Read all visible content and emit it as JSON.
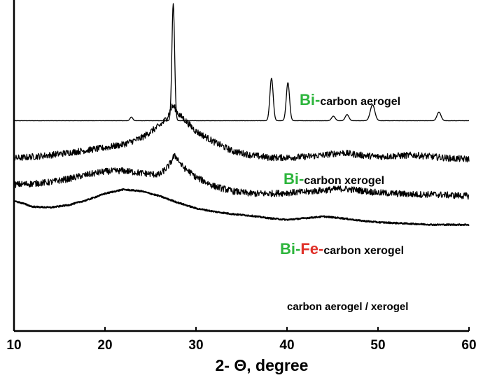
{
  "chart_data": {
    "type": "line",
    "xlabel": "2- Θ, degree",
    "ylabel": "",
    "xlim": [
      10,
      60
    ],
    "x_ticks": [
      "10",
      "20",
      "30",
      "40",
      "50",
      "60"
    ],
    "grid": false,
    "y_ticks_shown": false,
    "series": [
      {
        "name": "Bi-carbon aerogel",
        "label_parts": [
          {
            "text": "Bi",
            "color": "#2db53c"
          },
          {
            "text": "-",
            "color": "#2db53c"
          },
          {
            "text": "carbon aerogel",
            "color": "#000000"
          }
        ],
        "baseline": 0.6,
        "noise": 0.02,
        "peaks": [
          {
            "x": 22.9,
            "height": 0.9,
            "width": 0.15
          },
          {
            "x": 27.5,
            "height": 28.6,
            "width": 0.15
          },
          {
            "x": 38.3,
            "height": 10.4,
            "width": 0.18
          },
          {
            "x": 40.1,
            "height": 9.3,
            "width": 0.18
          },
          {
            "x": 45.1,
            "height": 1.1,
            "width": 0.2
          },
          {
            "x": 46.6,
            "height": 1.5,
            "width": 0.2
          },
          {
            "x": 49.4,
            "height": 3.9,
            "width": 0.25
          },
          {
            "x": 56.7,
            "height": 2.1,
            "width": 0.22
          }
        ]
      },
      {
        "name": "Bi-carbon xerogel",
        "label_parts": [
          {
            "text": "Bi",
            "color": "#2db53c"
          },
          {
            "text": "-",
            "color": "#2db53c"
          },
          {
            "text": "carbon xerogel",
            "color": "#000000"
          }
        ],
        "points": [
          [
            10,
            -8.6
          ],
          [
            12,
            -8.2
          ],
          [
            14,
            -7.8
          ],
          [
            16,
            -7.2
          ],
          [
            18,
            -6.6
          ],
          [
            20,
            -6.0
          ],
          [
            22,
            -5.2
          ],
          [
            24,
            -3.6
          ],
          [
            26,
            -0.6
          ],
          [
            27.4,
            2.4
          ],
          [
            28.5,
            1.4
          ],
          [
            30,
            -2.0
          ],
          [
            32,
            -4.6
          ],
          [
            34,
            -6.8
          ],
          [
            36,
            -7.8
          ],
          [
            38,
            -8.4
          ],
          [
            40,
            -8.4
          ],
          [
            42,
            -8.2
          ],
          [
            44,
            -7.8
          ],
          [
            46,
            -7.2
          ],
          [
            48,
            -7.8
          ],
          [
            50,
            -8.2
          ],
          [
            52,
            -8.0
          ],
          [
            54,
            -7.8
          ],
          [
            56,
            -8.2
          ],
          [
            58,
            -8.6
          ],
          [
            60,
            -8.8
          ]
        ],
        "noise": 0.8,
        "peaks": [
          {
            "x": 27.5,
            "height": 1.8,
            "width": 0.35
          }
        ]
      },
      {
        "name": "Bi-Fe-carbon xerogel",
        "label_parts": [
          {
            "text": "Bi",
            "color": "#2db53c"
          },
          {
            "text": "-",
            "color": "#2db53c"
          },
          {
            "text": "Fe",
            "color": "#e0312a"
          },
          {
            "text": "-",
            "color": "#e0312a"
          },
          {
            "text": "carbon xerogel",
            "color": "#000000"
          }
        ],
        "points": [
          [
            10,
            -15.0
          ],
          [
            12,
            -14.8
          ],
          [
            14,
            -14.4
          ],
          [
            16,
            -13.6
          ],
          [
            18,
            -12.6
          ],
          [
            20,
            -11.8
          ],
          [
            22,
            -11.6
          ],
          [
            24,
            -12.2
          ],
          [
            26,
            -12.6
          ],
          [
            27.5,
            -9.4
          ],
          [
            29,
            -11.4
          ],
          [
            30,
            -13.2
          ],
          [
            32,
            -15.4
          ],
          [
            34,
            -16.6
          ],
          [
            36,
            -17.2
          ],
          [
            38,
            -17.2
          ],
          [
            40,
            -17.0
          ],
          [
            42,
            -16.8
          ],
          [
            44,
            -16.4
          ],
          [
            46,
            -16.0
          ],
          [
            48,
            -16.4
          ],
          [
            50,
            -17.0
          ],
          [
            52,
            -17.2
          ],
          [
            54,
            -17.4
          ],
          [
            56,
            -17.4
          ],
          [
            58,
            -17.6
          ],
          [
            60,
            -17.8
          ]
        ],
        "noise": 0.8,
        "peaks": [
          {
            "x": 27.8,
            "height": 1.6,
            "width": 0.35
          }
        ]
      },
      {
        "name": "carbon aerogel/xerogel",
        "label_parts": [
          {
            "text": "carbon aerogel / xerogel",
            "color": "#000000"
          }
        ],
        "points": [
          [
            10,
            -19.0
          ],
          [
            11,
            -19.6
          ],
          [
            12,
            -20.4
          ],
          [
            14,
            -20.6
          ],
          [
            16,
            -20.0
          ],
          [
            18,
            -18.8
          ],
          [
            20,
            -17.2
          ],
          [
            22,
            -16.2
          ],
          [
            24,
            -16.6
          ],
          [
            26,
            -17.8
          ],
          [
            28,
            -19.4
          ],
          [
            30,
            -20.8
          ],
          [
            32,
            -21.6
          ],
          [
            34,
            -22.2
          ],
          [
            36,
            -22.6
          ],
          [
            38,
            -23.2
          ],
          [
            40,
            -23.6
          ],
          [
            42,
            -23.2
          ],
          [
            44,
            -22.8
          ],
          [
            46,
            -23.2
          ],
          [
            48,
            -23.8
          ],
          [
            50,
            -24.2
          ],
          [
            52,
            -24.4
          ],
          [
            54,
            -24.6
          ],
          [
            56,
            -24.8
          ],
          [
            58,
            -24.8
          ],
          [
            60,
            -24.8
          ]
        ],
        "noise": 0.15,
        "peaks": []
      }
    ]
  }
}
